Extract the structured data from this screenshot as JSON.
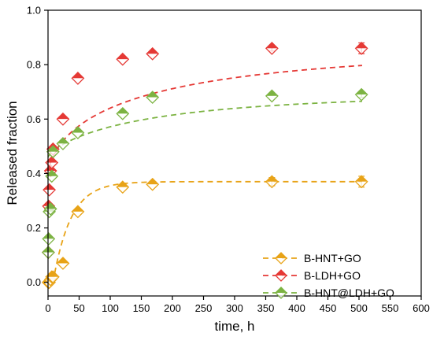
{
  "chart_data": {
    "type": "scatter",
    "xlabel": "time, h",
    "ylabel": "Released fraction",
    "xlim": [
      0,
      600
    ],
    "ylim": [
      -0.05,
      1.0
    ],
    "xticks": [
      0,
      50,
      100,
      150,
      200,
      250,
      300,
      350,
      400,
      450,
      500,
      550,
      600
    ],
    "yticks": [
      0.0,
      0.2,
      0.4,
      0.6,
      0.8,
      1.0
    ],
    "ytick_labels": [
      "0.0",
      "0.2",
      "0.4",
      "0.6",
      "0.8",
      "1.0"
    ],
    "grid": false,
    "legend_position": "bottom-right",
    "marker": "diamond",
    "fit_line_style": "dashed",
    "series": [
      {
        "name": "B-HNT+GO",
        "color": "#E8A317",
        "x": [
          0.5,
          1,
          2,
          4,
          6,
          8,
          24,
          48,
          120,
          168,
          360,
          504
        ],
        "y": [
          0.0,
          0.0,
          0.0,
          0.01,
          0.02,
          0.02,
          0.07,
          0.26,
          0.35,
          0.36,
          0.37,
          0.37
        ],
        "error": [
          0,
          0,
          0,
          0,
          0,
          0,
          0,
          0,
          0,
          0,
          0.015,
          0.02
        ],
        "fit": {
          "plateau": 0.37,
          "rate": 0.035,
          "lag": 8
        }
      },
      {
        "name": "B-LDH+GO",
        "color": "#E53935",
        "x": [
          0.5,
          1,
          2,
          4,
          6,
          8,
          24,
          48,
          120,
          168,
          360,
          504
        ],
        "y": [
          0.11,
          0.28,
          0.34,
          0.41,
          0.44,
          0.49,
          0.6,
          0.75,
          0.82,
          0.84,
          0.86,
          0.86
        ],
        "error": [
          0,
          0,
          0,
          0,
          0,
          0,
          0,
          0,
          0,
          0,
          0.01,
          0.02
        ],
        "fit": {
          "plateau": 0.86,
          "rate": 0.048,
          "lag": 0,
          "start": 0.39,
          "shape": 0.6
        }
      },
      {
        "name": "B-HNT@LDH+GO",
        "color": "#7CB342",
        "x": [
          0.5,
          1,
          2,
          4,
          6,
          8,
          24,
          48,
          120,
          168,
          360,
          504
        ],
        "y": [
          0.11,
          0.16,
          0.26,
          0.27,
          0.39,
          0.48,
          0.51,
          0.55,
          0.62,
          0.68,
          0.685,
          0.69
        ],
        "error": [
          0,
          0,
          0,
          0,
          0,
          0,
          0,
          0,
          0,
          0,
          0,
          0.01
        ],
        "fit": {
          "plateau": 0.69,
          "rate": 0.021,
          "lag": 0,
          "start": 0.46,
          "shape": 0.75
        }
      }
    ]
  }
}
